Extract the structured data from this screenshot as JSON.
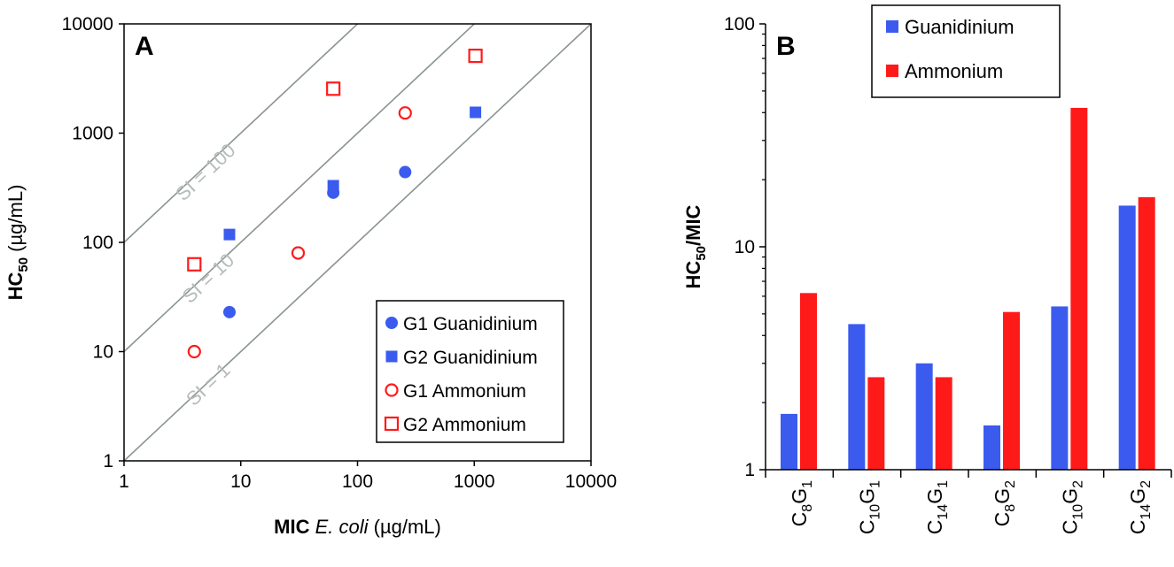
{
  "chart_data": [
    {
      "type": "scatter",
      "panel_label": "A",
      "xlabel": {
        "bold": "MIC ",
        "italic": "E. coli",
        "rest": " (µg/mL)"
      },
      "ylabel": {
        "main": "HC",
        "sub": "50",
        "rest": " (µg/mL)"
      },
      "xscale": "log",
      "yscale": "log",
      "xlim": [
        1,
        10000
      ],
      "ylim": [
        1,
        10000
      ],
      "xticks": [
        "1",
        "10",
        "100",
        "1000",
        "10000"
      ],
      "yticks": [
        "1",
        "10",
        "100",
        "1000",
        "10000"
      ],
      "grid": false,
      "legend_position": "bottom-right",
      "reference_lines": [
        {
          "label": "SI = 1",
          "slope": 1
        },
        {
          "label": "SI = 10",
          "slope": 10
        },
        {
          "label": "SI = 100",
          "slope": 100
        }
      ],
      "reference_line_color": "#8a9491",
      "series": [
        {
          "name": "G1 Guanidinium",
          "marker": "circle-filled",
          "color": "#3b5bef",
          "points": [
            [
              8,
              23
            ],
            [
              62,
              285
            ],
            [
              256,
              440
            ]
          ]
        },
        {
          "name": "G2 Guanidinium",
          "marker": "square-filled",
          "color": "#3b5bef",
          "points": [
            [
              8,
              118
            ],
            [
              62,
              330
            ],
            [
              1024,
              1550
            ]
          ]
        },
        {
          "name": "G1 Ammonium",
          "marker": "circle-open",
          "color": "#ff1a1a",
          "points": [
            [
              4,
              10
            ],
            [
              31,
              80
            ],
            [
              256,
              1530
            ]
          ]
        },
        {
          "name": "G2 Ammonium",
          "marker": "square-open",
          "color": "#ff1a1a",
          "points": [
            [
              4,
              63
            ],
            [
              62,
              2550
            ],
            [
              1024,
              5100
            ]
          ]
        }
      ]
    },
    {
      "type": "bar",
      "panel_label": "B",
      "ylabel": {
        "main": "HC",
        "sub": "50",
        "rest": "/MIC"
      },
      "yscale": "log",
      "ylim": [
        1,
        100
      ],
      "yticks": [
        "1",
        "10",
        "100"
      ],
      "grid": false,
      "legend_position": "top-left",
      "categories": [
        "C8G1",
        "C10G1",
        "C14G1",
        "C8G2",
        "C10G2",
        "C14G2"
      ],
      "series": [
        {
          "name": "Guanidinium",
          "color": "#3b5bef",
          "values": [
            1.78,
            4.5,
            3.0,
            1.58,
            5.4,
            15.3
          ]
        },
        {
          "name": "Ammonium",
          "color": "#ff1a1a",
          "values": [
            6.2,
            2.6,
            2.6,
            5.1,
            42,
            16.7
          ]
        }
      ]
    }
  ]
}
